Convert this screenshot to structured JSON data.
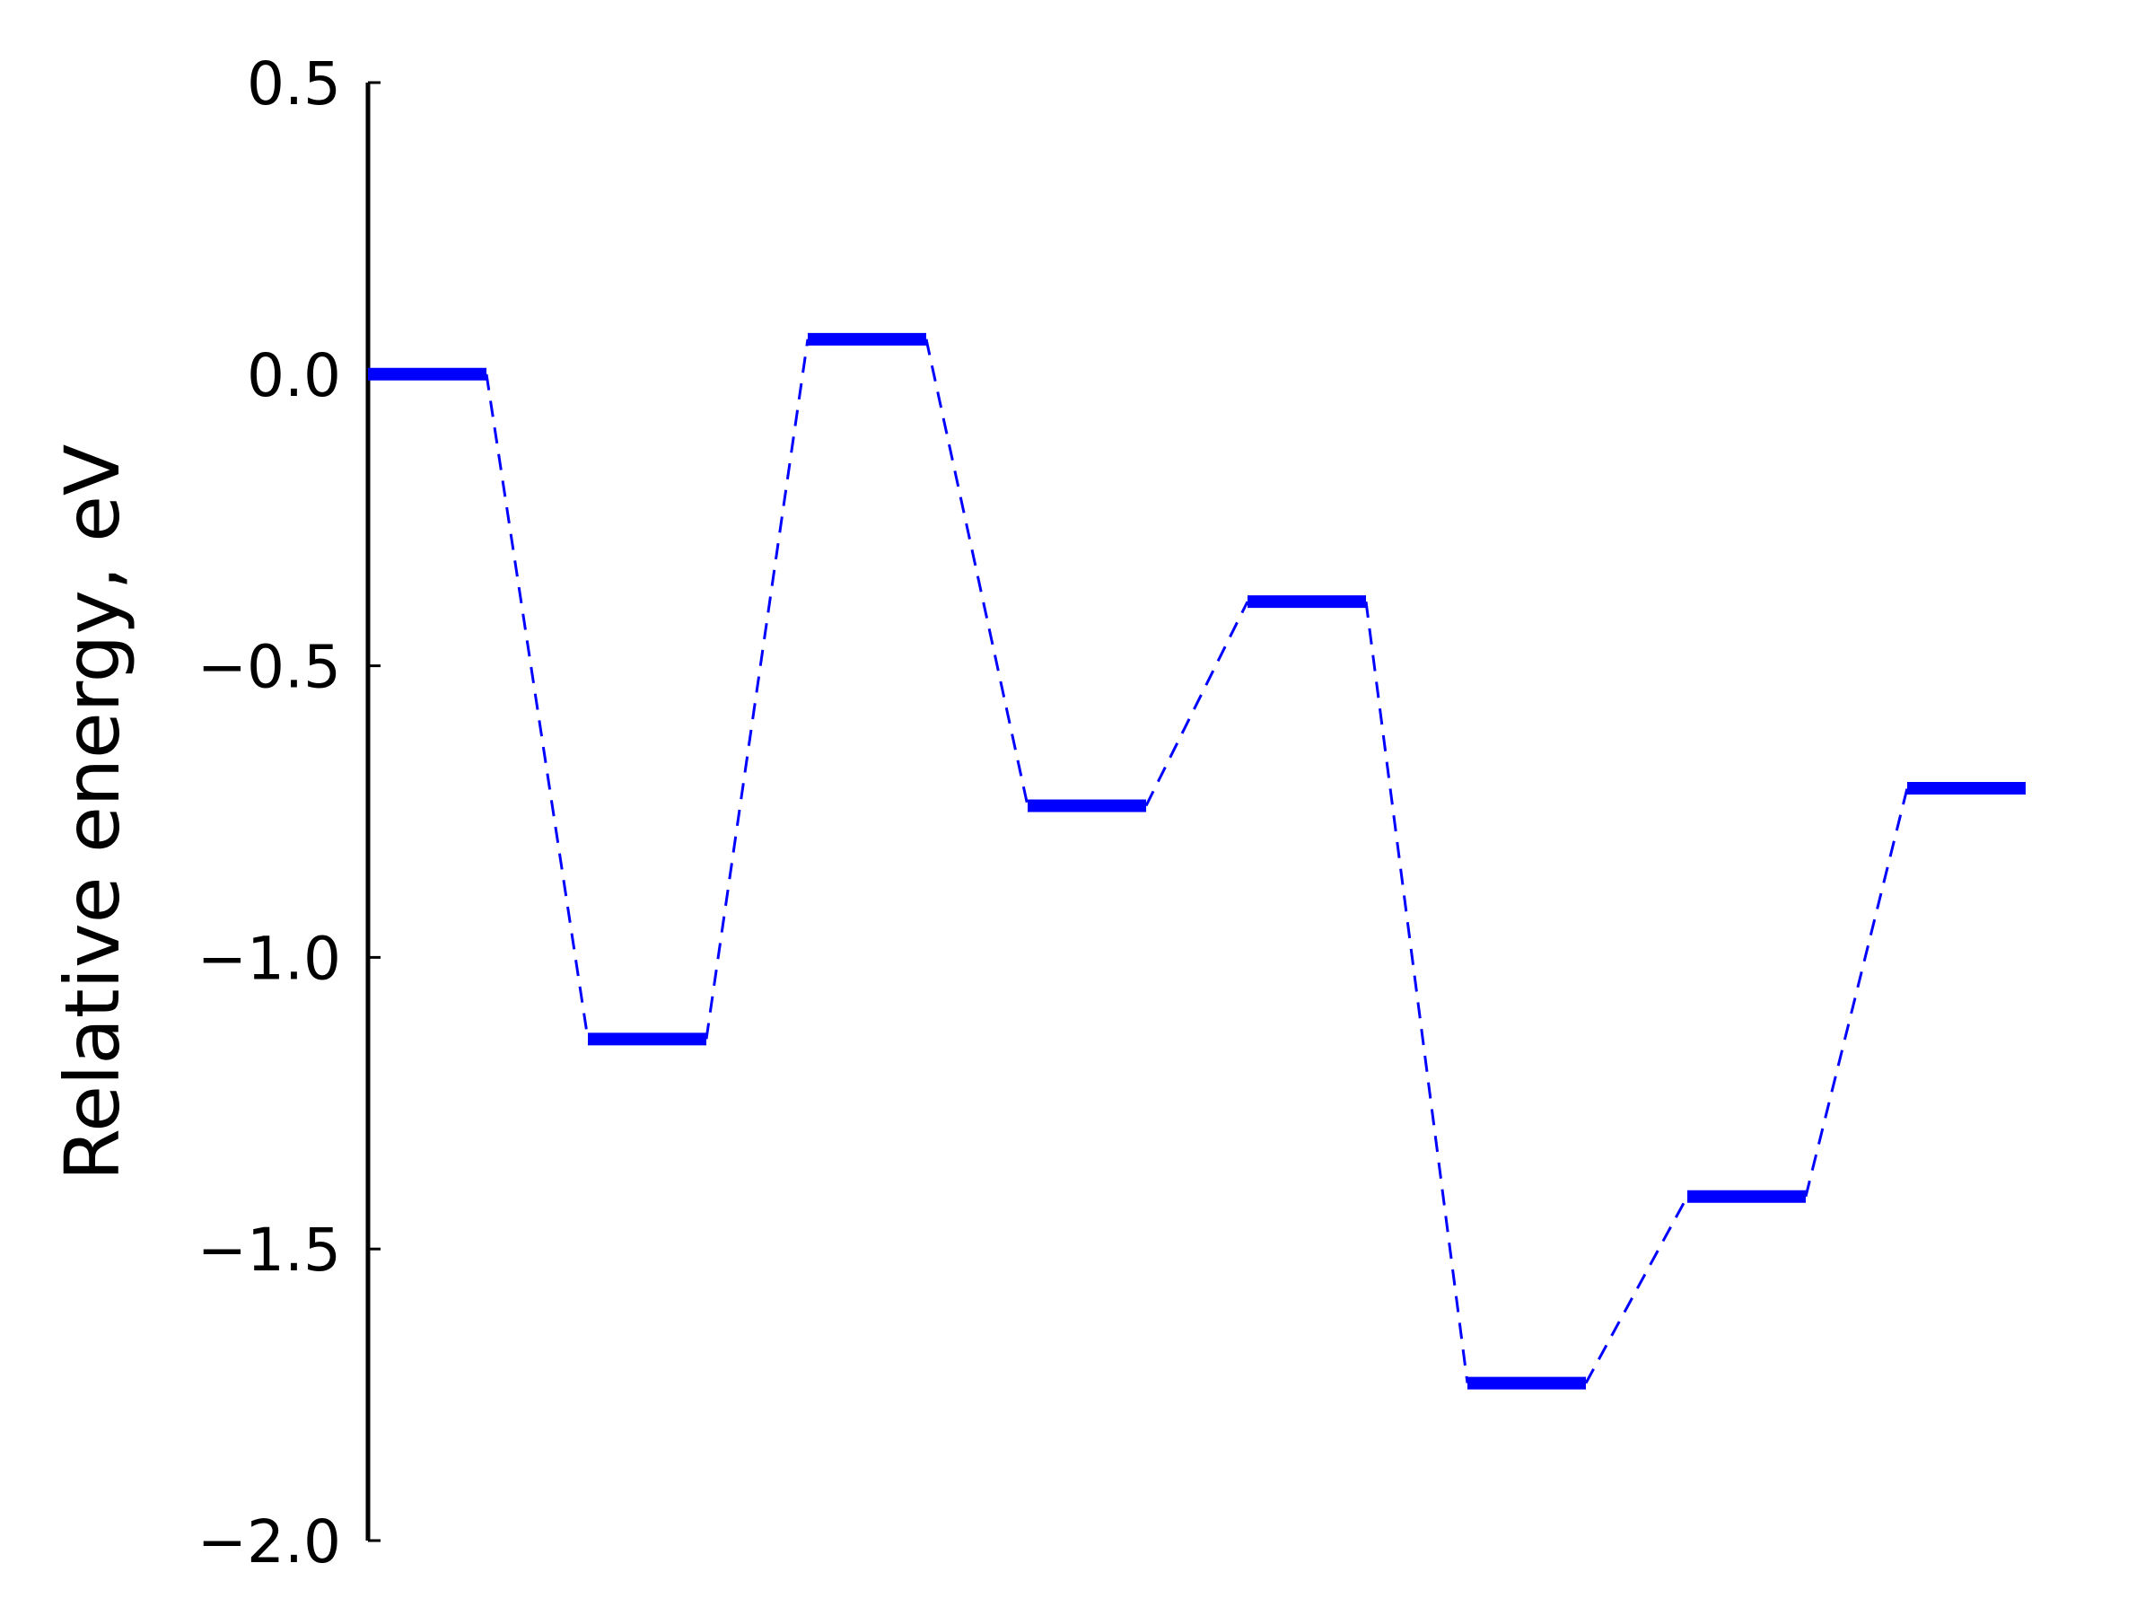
{
  "chart_data": {
    "type": "line",
    "title": "",
    "xlabel": "",
    "ylabel": "Relative energy, eV",
    "ylim": [
      -2.0,
      0.5
    ],
    "yticks": [
      0.5,
      0.0,
      -0.5,
      -1.0,
      -1.5,
      -2.0
    ],
    "ytick_labels": [
      "0.5",
      "0.0",
      "−0.5",
      "−1.0",
      "−1.5",
      "−2.0"
    ],
    "grid": false,
    "legend": "none",
    "series": [
      {
        "style": "energy-levels-with-dashed-connectors",
        "color": "#0000ff",
        "values": [
          0.0,
          -1.14,
          0.06,
          -0.74,
          -0.39,
          -1.73,
          -1.41,
          -0.71
        ]
      }
    ]
  }
}
